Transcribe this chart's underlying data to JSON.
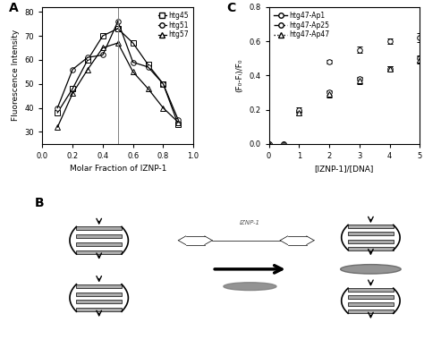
{
  "panel_A": {
    "title": "A",
    "xlabel": "Molar Fraction of IZNP-1",
    "ylabel": "Fluorescence Intensity",
    "xlim": [
      0.0,
      1.0
    ],
    "ylim": [
      25,
      82
    ],
    "yticks": [
      30,
      40,
      50,
      60,
      70,
      80
    ],
    "xticks": [
      0.0,
      0.2,
      0.4,
      0.6,
      0.8,
      1.0
    ],
    "vline": 0.5,
    "series": {
      "htg45": {
        "x": [
          0.1,
          0.2,
          0.3,
          0.4,
          0.5,
          0.6,
          0.7,
          0.8,
          0.9
        ],
        "y": [
          38,
          48,
          60,
          70,
          73,
          67,
          58,
          50,
          33
        ],
        "marker": "s",
        "linestyle": "-",
        "label": "htg45",
        "markersize": 4,
        "markerfacecolor": "white"
      },
      "htg51": {
        "x": [
          0.1,
          0.2,
          0.3,
          0.4,
          0.5,
          0.6,
          0.7,
          0.8,
          0.9
        ],
        "y": [
          40,
          56,
          61,
          62,
          76,
          59,
          57,
          50,
          35
        ],
        "marker": "o",
        "linestyle": "-",
        "label": "htg51",
        "markersize": 4,
        "markerfacecolor": "white"
      },
      "htg57": {
        "x": [
          0.1,
          0.2,
          0.3,
          0.4,
          0.5,
          0.6,
          0.7,
          0.8,
          0.9
        ],
        "y": [
          32,
          46,
          56,
          65,
          67,
          55,
          48,
          40,
          34
        ],
        "marker": "^",
        "linestyle": "-",
        "label": "htg57",
        "markersize": 4,
        "markerfacecolor": "white"
      }
    }
  },
  "panel_C": {
    "title": "C",
    "xlabel": "[IZNP-1]/[DNA]",
    "ylabel": "(F₀-Fᵢ)/F₀",
    "xlim": [
      0,
      5
    ],
    "ylim": [
      0.0,
      0.8
    ],
    "yticks": [
      0.0,
      0.2,
      0.4,
      0.6,
      0.8
    ],
    "xticks": [
      0,
      1,
      2,
      3,
      4,
      5
    ],
    "series": {
      "htg47_Ap1": {
        "x": [
          0,
          0.5,
          1,
          2,
          3,
          4,
          5
        ],
        "y": [
          0.0,
          0.0,
          0.19,
          0.3,
          0.38,
          0.44,
          0.5
        ],
        "yerr": [
          0.0,
          0.0,
          0.01,
          0.012,
          0.01,
          0.012,
          0.018
        ],
        "marker": "o",
        "linestyle": "-",
        "label": "htg47-Ap1",
        "markersize": 4,
        "markerfacecolor": "white"
      },
      "htg47_Ap25": {
        "x": [
          0,
          0.5,
          1,
          2,
          3,
          4,
          5
        ],
        "y": [
          0.0,
          0.0,
          0.2,
          0.48,
          0.55,
          0.6,
          0.62
        ],
        "yerr": [
          0.0,
          0.0,
          0.012,
          0.012,
          0.018,
          0.018,
          0.025
        ],
        "marker": "o",
        "linestyle": "--",
        "label": "htg47-Ap25",
        "markersize": 4,
        "markerfacecolor": "white"
      },
      "htg47_Ap47": {
        "x": [
          0,
          0.5,
          1,
          2,
          3,
          4,
          5
        ],
        "y": [
          0.0,
          0.0,
          0.18,
          0.29,
          0.37,
          0.44,
          0.49
        ],
        "yerr": [
          0.0,
          0.0,
          0.01,
          0.018,
          0.018,
          0.012,
          0.022
        ],
        "marker": "^",
        "linestyle": ":",
        "label": "htg47-Ap47",
        "markersize": 4,
        "markerfacecolor": "white"
      }
    }
  }
}
